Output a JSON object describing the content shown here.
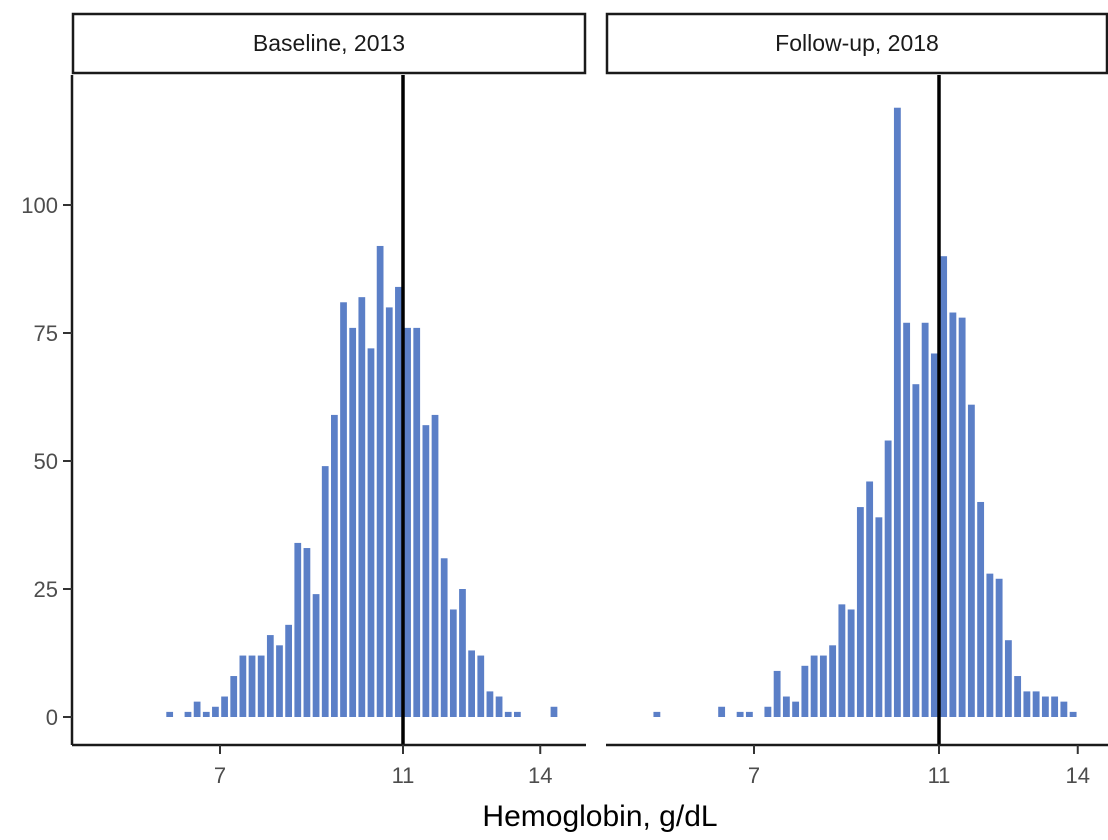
{
  "chart_data": {
    "type": "bar",
    "xlabel": "Hemoglobin, g/dL",
    "ylabel": "",
    "ylim": [
      0,
      120
    ],
    "y_ticks": [
      0,
      25,
      50,
      75,
      100
    ],
    "x_ticks": [
      7,
      11,
      14
    ],
    "bin_width": 0.2,
    "reference_line_x": 11,
    "bar_color": "#5b7fc7",
    "line_color": "#000000",
    "grid": false,
    "panels": [
      {
        "title": "Baseline, 2013",
        "xlim": [
          5.3,
          14.6
        ],
        "x": [
          5.9,
          6.3,
          6.5,
          6.7,
          6.9,
          7.1,
          7.3,
          7.5,
          7.7,
          7.9,
          8.1,
          8.3,
          8.5,
          8.7,
          8.9,
          9.1,
          9.3,
          9.5,
          9.7,
          9.9,
          10.1,
          10.3,
          10.5,
          10.7,
          10.9,
          11.1,
          11.3,
          11.5,
          11.7,
          11.9,
          12.1,
          12.3,
          12.5,
          12.7,
          12.9,
          13.1,
          13.3,
          13.5,
          13.7,
          14.3
        ],
        "y": [
          1,
          1,
          3,
          1,
          2,
          4,
          8,
          12,
          12,
          12,
          16,
          14,
          18,
          34,
          33,
          24,
          49,
          59,
          81,
          76,
          82,
          72,
          92,
          80,
          84,
          76,
          76,
          57,
          59,
          31,
          21,
          25,
          13,
          12,
          5,
          4,
          1,
          1,
          0,
          2
        ]
      },
      {
        "title": "Follow-up, 2018",
        "xlim": [
          4.5,
          14.6
        ],
        "x": [
          4.9,
          6.3,
          6.7,
          6.9,
          7.3,
          7.5,
          7.7,
          7.9,
          8.1,
          8.3,
          8.5,
          8.7,
          8.9,
          9.1,
          9.3,
          9.5,
          9.7,
          9.9,
          10.1,
          10.3,
          10.5,
          10.7,
          10.9,
          11.1,
          11.3,
          11.5,
          11.7,
          11.9,
          12.1,
          12.3,
          12.5,
          12.7,
          12.9,
          13.1,
          13.3,
          13.5,
          13.7,
          13.9,
          14.1,
          14.3
        ],
        "y": [
          1,
          2,
          1,
          1,
          2,
          9,
          4,
          3,
          10,
          12,
          12,
          14,
          22,
          21,
          41,
          46,
          39,
          54,
          119,
          77,
          65,
          77,
          71,
          90,
          79,
          78,
          61,
          42,
          28,
          27,
          15,
          8,
          5,
          5,
          4,
          4,
          3,
          1,
          0,
          0
        ]
      }
    ]
  }
}
